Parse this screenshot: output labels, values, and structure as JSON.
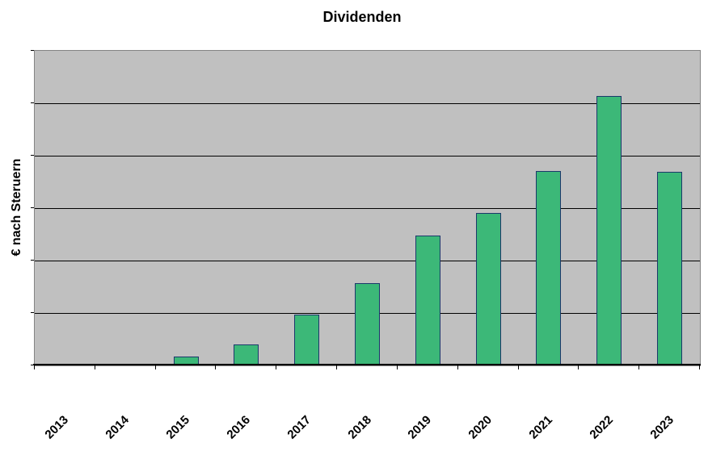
{
  "title": "Dividenden",
  "chart_data": {
    "type": "bar",
    "title": "Dividenden",
    "xlabel": "",
    "ylabel": "€ nach Steruern",
    "categories": [
      "2013",
      "2014",
      "2015",
      "2016",
      "2017",
      "2018",
      "2019",
      "2020",
      "2021",
      "2022",
      "2023"
    ],
    "values": [
      0,
      0.03,
      0.17,
      0.4,
      0.97,
      1.57,
      2.48,
      2.91,
      3.7,
      5.14,
      3.69
    ],
    "value_units": "gridline divisions (y axis shows no numeric labels)",
    "ylim": [
      0,
      6
    ],
    "y_divisions": 6,
    "grid": true,
    "legend": false,
    "x_tick_rotation_deg": -45,
    "colors": {
      "bar_fill": "#3CB878",
      "bar_border": "#1B386B",
      "plot_bg": "#C0C0C0",
      "gridline": "#000000",
      "axis": "#000000",
      "plot_border": "#848484",
      "text": "#000000",
      "page_bg": "#FFFFFF"
    }
  }
}
